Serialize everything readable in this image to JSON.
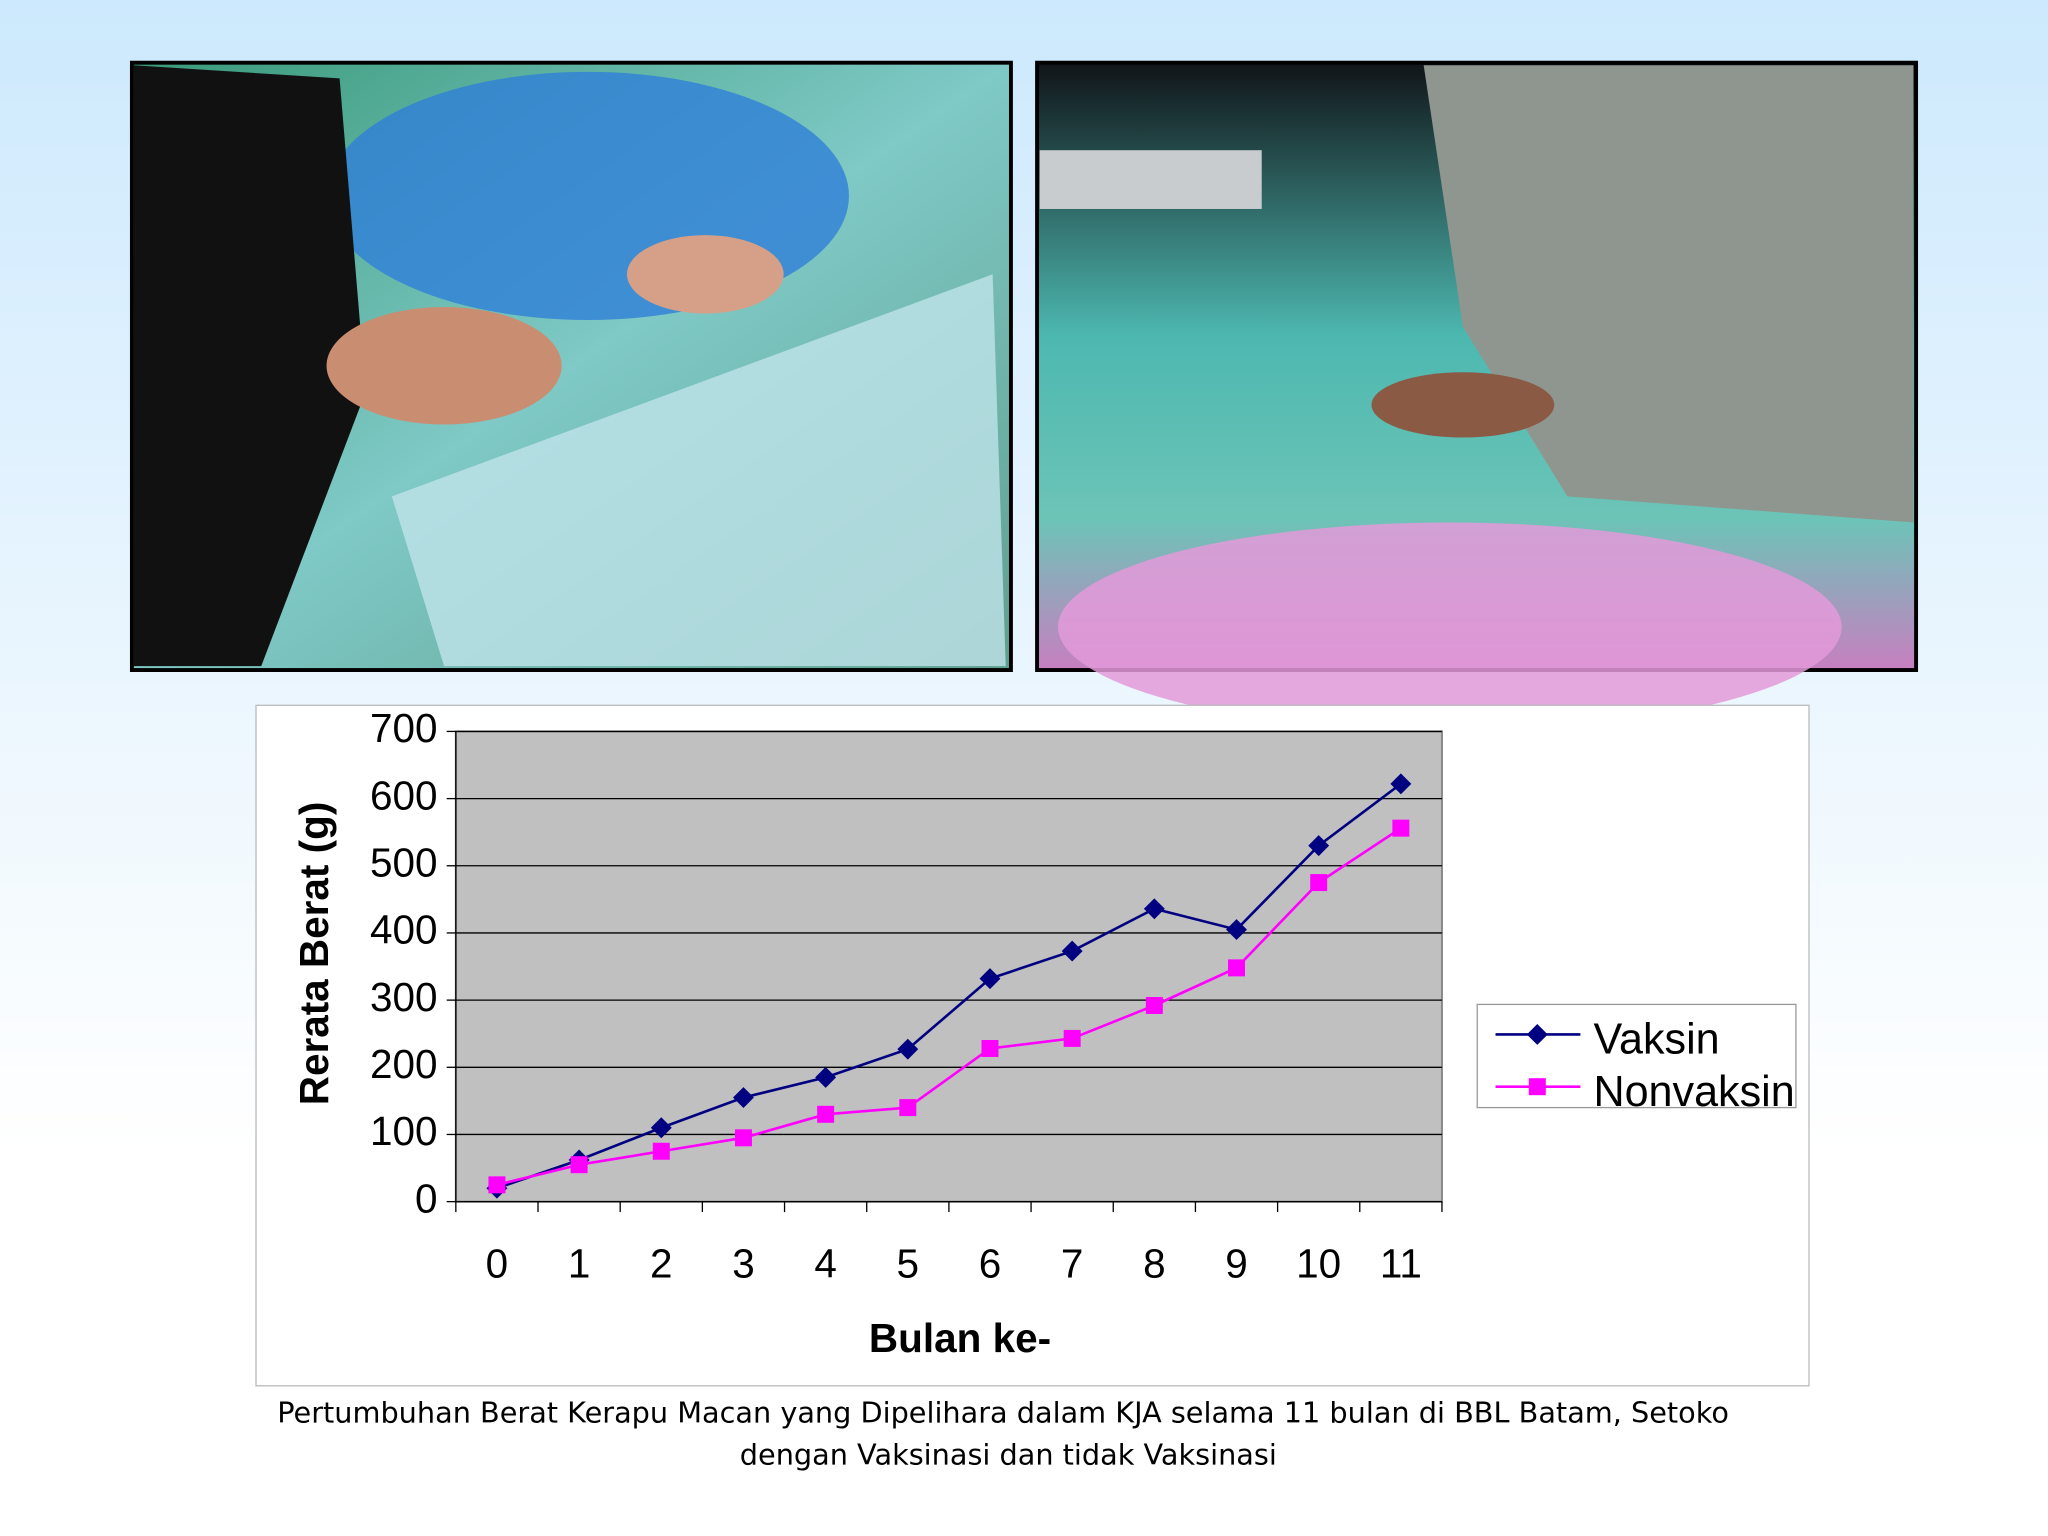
{
  "chart_data": {
    "type": "line",
    "y_label": "Rerata Berat (g)",
    "x_label": "Bulan ke-",
    "categories": [
      "0",
      "1",
      "2",
      "3",
      "4",
      "5",
      "6",
      "7",
      "8",
      "9",
      "10",
      "11"
    ],
    "series": [
      {
        "name": "Vaksin",
        "color": "#000080",
        "marker": "diamond",
        "values": [
          20,
          62,
          110,
          155,
          185,
          227,
          332,
          373,
          436,
          405,
          530,
          622
        ]
      },
      {
        "name": "Nonvaksin",
        "color": "#ff00ff",
        "marker": "square",
        "values": [
          25,
          55,
          75,
          95,
          130,
          140,
          228,
          243,
          292,
          348,
          475,
          556
        ]
      }
    ],
    "ylim": [
      0,
      700
    ],
    "yticks": [
      0,
      100,
      200,
      300,
      400,
      500,
      600,
      700
    ],
    "grid": true,
    "legend": "right",
    "caption": [
      "Pertumbuhan Berat Kerapu Macan yang Dipelihara dalam KJA selama 11 bulan di BBL Batam, Setoko",
      "dengan Vaksinasi dan tidak Vaksinasi"
    ]
  }
}
